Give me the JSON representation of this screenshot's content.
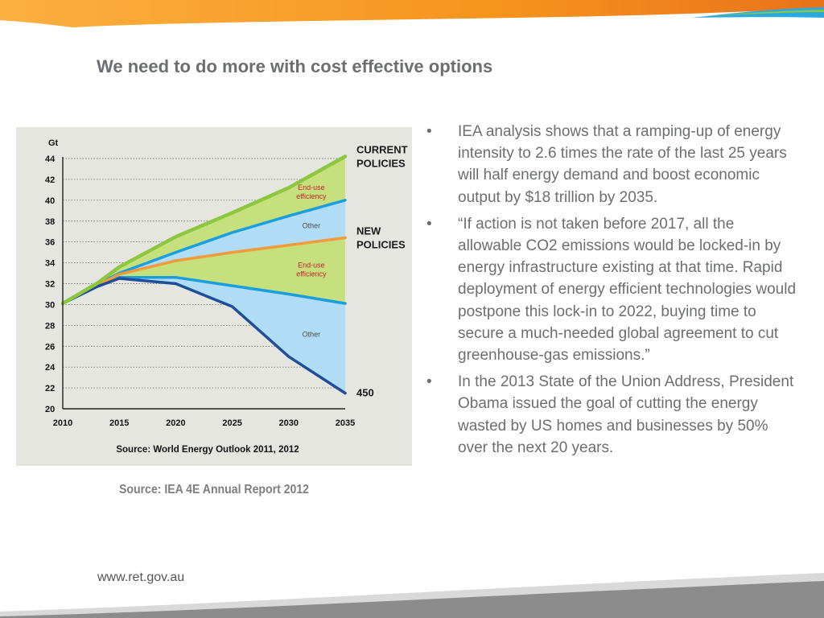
{
  "slide": {
    "title": "We need to do more with cost effective options",
    "caption": "Source: IEA 4E Annual Report 2012",
    "footer_url": "www.ret.gov.au"
  },
  "bullets": [
    "IEA analysis shows that a ramping-up of energy intensity to 2.6 times the rate of the last 25 years will half energy demand and boost economic output by $18 trillion by 2035.",
    "“If action is not taken before 2017, all the allowable CO2 emissions would be locked-in by energy infrastructure existing at that time.  Rapid deployment of energy efficient technologies would postpone this lock-in to 2022, buying time to secure a much-needed global agreement to cut greenhouse-gas emissions.”",
    "In the 2013 State of the Union Address, President Obama issued the goal of cutting the energy wasted by US homes and businesses by 50% over the next 20 years."
  ],
  "bullet_symbol": "•",
  "colors": {
    "title_text": "#6d6e71",
    "body_text": "#6d6e71",
    "orange_band": "#f7941d",
    "blue_accent": "#29abe2",
    "grey_band": "#8c8c8c",
    "green_series": "#8dc63f",
    "green_fill": "#c5e07c",
    "blue_series": "#1b9ee0",
    "blue_fill": "#b0dcf5",
    "orange_series": "#f39a3b",
    "navy_series": "#1f4e99",
    "chart_background": "#e6e6e1"
  },
  "chart_data": {
    "type": "area",
    "unit_label": "Gt",
    "source": "Source: World Energy Outlook 2011, 2012",
    "x": [
      2010,
      2013,
      2015,
      2020,
      2025,
      2030,
      2035
    ],
    "xticks": [
      2010,
      2015,
      2020,
      2025,
      2030,
      2035
    ],
    "yticks": [
      20,
      22,
      24,
      26,
      28,
      30,
      32,
      34,
      36,
      38,
      40,
      42,
      44
    ],
    "xlim": [
      2010,
      2035
    ],
    "ylim": [
      20,
      44
    ],
    "grid": true,
    "series": [
      {
        "key": "current",
        "values": [
          30.1,
          32.0,
          33.6,
          36.5,
          38.8,
          41.2,
          44.2
        ]
      },
      {
        "key": "upper_blue",
        "values": [
          30.1,
          31.9,
          33.0,
          35.0,
          36.9,
          38.5,
          40.0
        ]
      },
      {
        "key": "new",
        "values": [
          30.1,
          31.8,
          32.9,
          34.2,
          35.0,
          35.7,
          36.4
        ]
      },
      {
        "key": "lower_blue",
        "values": [
          30.1,
          31.7,
          32.6,
          32.6,
          31.8,
          31.0,
          30.1
        ]
      },
      {
        "key": "path_450",
        "values": [
          30.1,
          31.7,
          32.5,
          32.0,
          29.8,
          25.0,
          21.5
        ]
      }
    ],
    "bands": [
      {
        "from": "upper_blue",
        "to": "current",
        "fill": "green"
      },
      {
        "from": "new",
        "to": "upper_blue",
        "fill": "blue"
      },
      {
        "from": "lower_blue",
        "to": "new",
        "fill": "green"
      },
      {
        "from": "path_450",
        "to": "lower_blue",
        "fill": "blue"
      }
    ],
    "series_labels": [
      {
        "key": "current",
        "lines": [
          "CURRENT",
          "POLICIES"
        ]
      },
      {
        "key": "new",
        "lines": [
          "NEW",
          "POLICIES"
        ]
      },
      {
        "key": "path_450",
        "lines": [
          "450"
        ]
      }
    ],
    "annotations": [
      {
        "lines": [
          "End-use",
          "efficiency"
        ],
        "style": "red",
        "band": 0
      },
      {
        "lines": [
          "Other"
        ],
        "style": "grey",
        "band": 1
      },
      {
        "lines": [
          "End-use",
          "efficiency"
        ],
        "style": "red",
        "band": 2
      },
      {
        "lines": [
          "Other"
        ],
        "style": "grey",
        "band": 3
      }
    ]
  }
}
